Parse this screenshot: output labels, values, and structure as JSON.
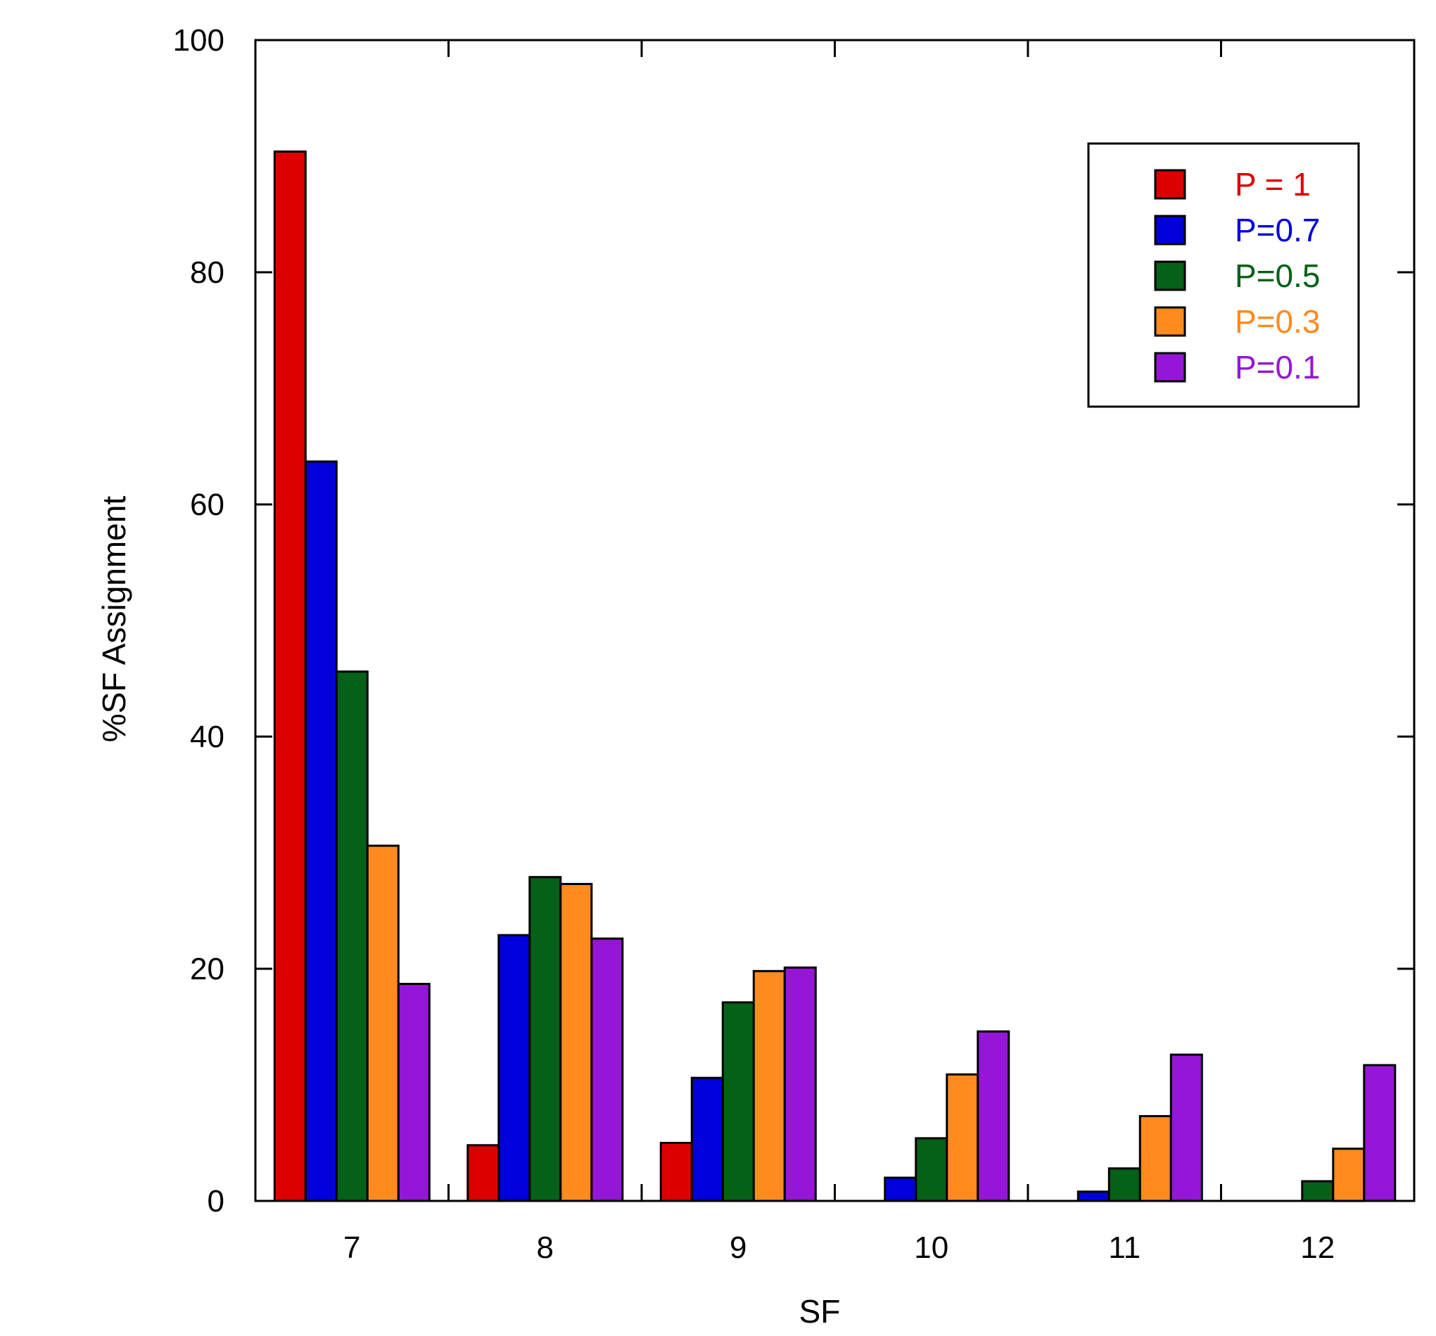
{
  "chart_data": {
    "type": "bar",
    "title": "",
    "xlabel": "SF",
    "ylabel": "%SF Assignment",
    "categories": [
      "7",
      "8",
      "9",
      "10",
      "11",
      "12"
    ],
    "ylim": [
      0,
      100
    ],
    "yticks": [
      0,
      20,
      40,
      60,
      80,
      100
    ],
    "grid": false,
    "legend_position": "top-right",
    "series": [
      {
        "name": "P = 1",
        "color": "#dd0000",
        "values": [
          90.4,
          4.8,
          5.0,
          0,
          0,
          0
        ]
      },
      {
        "name": "P=0.7",
        "color": "#0000dd",
        "values": [
          63.7,
          22.9,
          10.6,
          2.0,
          0.8,
          0
        ]
      },
      {
        "name": "P=0.5",
        "color": "#056118",
        "values": [
          45.6,
          27.9,
          17.1,
          5.4,
          2.8,
          1.7
        ]
      },
      {
        "name": "P=0.3",
        "color": "#ff8a1d",
        "values": [
          30.6,
          27.3,
          19.8,
          10.9,
          7.3,
          4.5
        ]
      },
      {
        "name": "P=0.1",
        "color": "#9516d6",
        "values": [
          18.7,
          22.6,
          20.1,
          14.6,
          12.6,
          11.7
        ]
      }
    ]
  }
}
